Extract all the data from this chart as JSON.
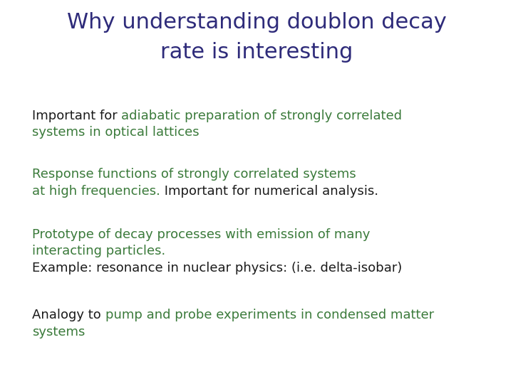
{
  "title_line1": "Why understanding doublon decay",
  "title_line2": "rate is interesting",
  "title_color": "#2e2b7a",
  "background_color": "#ffffff",
  "title_fontsize": 22,
  "body_fontsize": 13,
  "green_color": "#3a7a3a",
  "black_color": "#1a1a1a",
  "bullets": [
    {
      "lines": [
        [
          {
            "text": "Important for ",
            "color": "#1a1a1a"
          },
          {
            "text": "adiabatic preparation of strongly correlated",
            "color": "#3a7a3a"
          }
        ],
        [
          {
            "text": "systems in optical lattices",
            "color": "#3a7a3a"
          }
        ]
      ]
    },
    {
      "lines": [
        [
          {
            "text": "Response functions of strongly correlated systems",
            "color": "#3a7a3a"
          }
        ],
        [
          {
            "text": "at high frequencies.",
            "color": "#3a7a3a"
          },
          {
            "text": " Important for numerical analysis.",
            "color": "#1a1a1a"
          }
        ]
      ]
    },
    {
      "lines": [
        [
          {
            "text": "Prototype of decay processes with emission of many",
            "color": "#3a7a3a"
          }
        ],
        [
          {
            "text": "interacting particles.",
            "color": "#3a7a3a"
          }
        ],
        [
          {
            "text": "Example: resonance in nuclear physics: (i.e. delta-isobar)",
            "color": "#1a1a1a"
          }
        ]
      ]
    },
    {
      "lines": [
        [
          {
            "text": "Analogy to ",
            "color": "#1a1a1a"
          },
          {
            "text": "pump and probe experiments in condensed matter",
            "color": "#3a7a3a"
          }
        ],
        [
          {
            "text": "systems",
            "color": "#3a7a3a"
          }
        ]
      ]
    }
  ]
}
